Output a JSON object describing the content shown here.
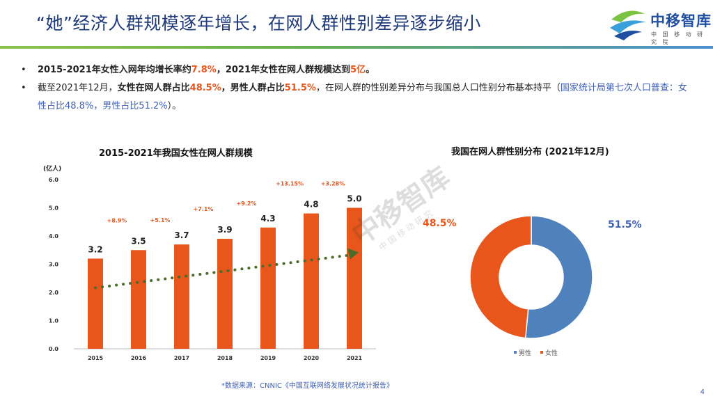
{
  "header": {
    "title": "“她”经济人群规模逐年增长，在网人群性别差异逐步缩小",
    "logo_text": "中移智库",
    "logo_subtext": "中 国 移 动 研 究 院"
  },
  "bullets": {
    "b1": {
      "t1": "2015-2021年女性入网年均增长率约",
      "t2": "7.8%",
      "t3": "，2021年女性在网人群规模达到",
      "t4": "5亿",
      "t5": "。"
    },
    "b2": {
      "t1": "截至2021年12月，",
      "t2": "女性在网人群占比",
      "t3": "48.5%",
      "t4": "，",
      "t5": "男性人群占比",
      "t6": "51.5%",
      "t7": "，在网人群的性别差异分布与我国总人口性别分布基本持平（",
      "t8": "国家统计局第七次人口普查：女性占比48.8%，男性占比51.2%",
      "t9": "）。"
    }
  },
  "watermark": {
    "text": "中移智库",
    "subtext": "中 国 移 动 研 究"
  },
  "colors": {
    "bar": "#e8561c",
    "trend": "#4a6b2a",
    "male": "#4f81bd",
    "female": "#e8561c",
    "label_blue": "#3d5fb8"
  },
  "chart_data": [
    {
      "type": "bar",
      "title": "2015-2021年我国女性在网人群规模",
      "ylabel": "(亿人)",
      "categories": [
        "2015",
        "2016",
        "2017",
        "2018",
        "2019",
        "2020",
        "2021"
      ],
      "values": [
        3.2,
        3.5,
        3.7,
        3.9,
        4.3,
        4.8,
        5.0
      ],
      "value_labels": [
        "3.2",
        "3.5",
        "3.7",
        "3.9",
        "4.3",
        "4.8",
        "5.0"
      ],
      "growth_labels": [
        "+8.9%",
        "+5.1%",
        "+7.1%",
        "+9.2%",
        "+13.15%",
        "+3.28%"
      ],
      "yticks": [
        "0.0",
        "1.0",
        "2.0",
        "3.0",
        "4.0",
        "5.0",
        "6.0"
      ],
      "ylim": [
        0,
        6
      ],
      "trendline": true
    },
    {
      "type": "pie",
      "title": "我国在网人群性别分布 (2021年12月)",
      "labels": [
        "男性",
        "女性"
      ],
      "values": [
        51.5,
        48.5
      ],
      "value_labels": [
        "51.5%",
        "48.5%"
      ],
      "donut": true,
      "legend": "bottom"
    }
  ],
  "footer": {
    "source": "*数据来源：CNNIC《中国互联网络发展状况统计报告》",
    "page": "4"
  }
}
